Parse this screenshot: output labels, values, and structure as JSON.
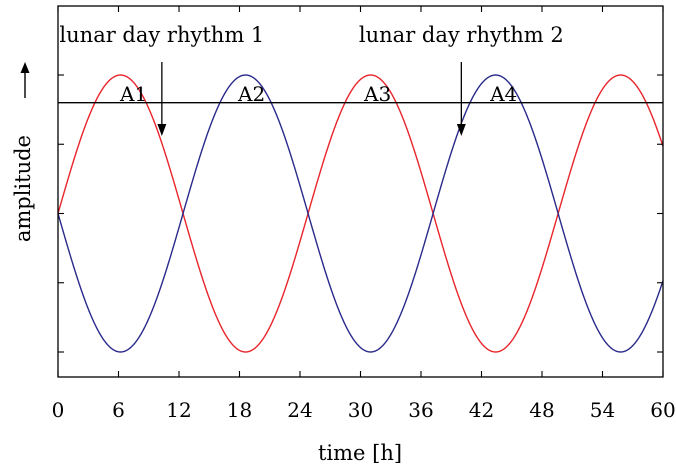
{
  "chart_data": {
    "type": "line",
    "xlabel": "time [h]",
    "ylabel": "amplitude",
    "xlim": [
      0,
      60
    ],
    "ylim": [
      -1.2,
      1.2
    ],
    "x_ticks": [
      0,
      6,
      12,
      18,
      24,
      30,
      36,
      42,
      48,
      54,
      60
    ],
    "x_tick_labels": [
      "0",
      "6",
      "12",
      "18",
      "24",
      "30",
      "36",
      "42",
      "48",
      "54",
      "60"
    ],
    "y_ticks": [
      -1,
      -0.5,
      0,
      0.5,
      1
    ],
    "grid": false,
    "period_hours": 24.8,
    "series": [
      {
        "color": "#e8252b",
        "function": "sin",
        "phase_shift_hours": 0
      },
      {
        "color": "#2a2a8c",
        "function": "-sin",
        "phase_shift_hours": 0
      }
    ],
    "threshold_line": {
      "y": 0.8,
      "color": "#000000"
    },
    "peak_labels": [
      {
        "text": "A1",
        "x": 7.5
      },
      {
        "text": "A2",
        "x": 19.2
      },
      {
        "text": "A3",
        "x": 31.7
      },
      {
        "text": "A4",
        "x": 44.2
      }
    ],
    "annotations": [
      {
        "text": "lunar day rhythm 1",
        "arrow_x": 10.3,
        "arrow_tip_y": 0.56
      },
      {
        "text": "lunar day rhythm 2",
        "arrow_x": 40.0,
        "arrow_tip_y": 0.56
      }
    ]
  }
}
